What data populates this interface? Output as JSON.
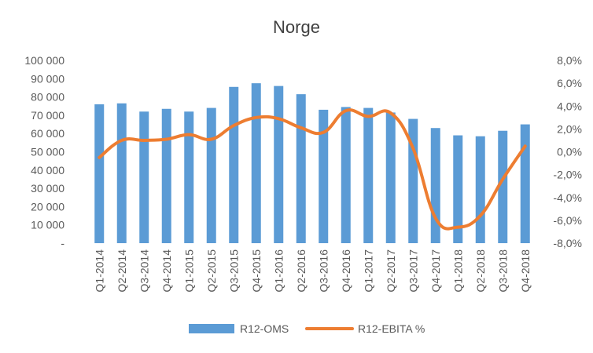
{
  "chart_data": {
    "type": "bar",
    "title": "Norge",
    "categories": [
      "Q1-2014",
      "Q2-2014",
      "Q3-2014",
      "Q4-2014",
      "Q1-2015",
      "Q2-2015",
      "Q3-2015",
      "Q4-2015",
      "Q1-2016",
      "Q2-2016",
      "Q3-2016",
      "Q4-2016",
      "Q1-2017",
      "Q2-2017",
      "Q3-2017",
      "Q4-2017",
      "Q1-2018",
      "Q2-2018",
      "Q3-2018",
      "Q4-2018"
    ],
    "series": [
      {
        "name": "R12-OMS",
        "type": "bar",
        "axis": "left",
        "color": "#5B9BD5",
        "values": [
          76000,
          76500,
          72000,
          73500,
          72000,
          74000,
          85500,
          87500,
          86000,
          81500,
          73000,
          74500,
          74000,
          71500,
          68000,
          63000,
          59000,
          58500,
          61500,
          65000
        ]
      },
      {
        "name": "R12-EBITA %",
        "type": "line",
        "axis": "right",
        "color": "#ED7D31",
        "values": [
          -0.5,
          1.0,
          1.0,
          1.1,
          1.5,
          1.1,
          2.3,
          3.0,
          2.9,
          2.1,
          1.7,
          3.6,
          3.1,
          3.4,
          0.3,
          -5.8,
          -6.6,
          -5.6,
          -2.4,
          0.5
        ]
      }
    ],
    "left_axis": {
      "ylim": [
        0,
        100000
      ],
      "ticks": [
        100000,
        90000,
        80000,
        70000,
        60000,
        50000,
        40000,
        30000,
        20000,
        10000,
        0
      ],
      "tick_labels": [
        "100 000",
        "90 000",
        "80 000",
        "70 000",
        "60 000",
        "50 000",
        "40 000",
        "30 000",
        "20 000",
        "10 000",
        "-"
      ]
    },
    "right_axis": {
      "ylim": [
        -8,
        8
      ],
      "ticks": [
        8,
        6,
        4,
        2,
        0,
        -2,
        -4,
        -6,
        -8
      ],
      "tick_labels": [
        "8,0%",
        "6,0%",
        "4,0%",
        "2,0%",
        "0,0%",
        "-2,0%",
        "-4,0%",
        "-6,0%",
        "-8,0%"
      ]
    },
    "grid": false,
    "legend_position": "bottom"
  }
}
